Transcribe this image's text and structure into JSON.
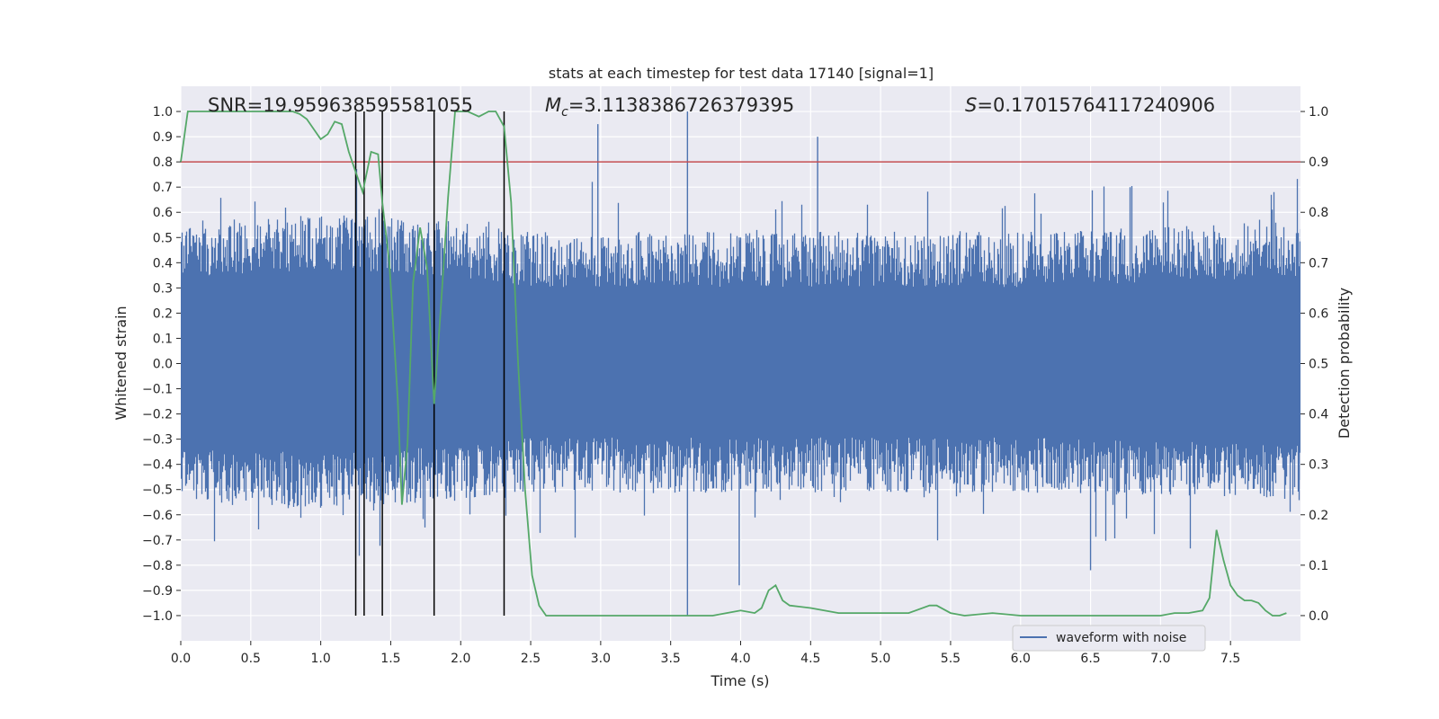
{
  "chart_data": {
    "type": "line",
    "title": "stats at each timestep for test data 17140 [signal=1]",
    "xlabel": "Time (s)",
    "ylabel": "Whitened strain",
    "y2label": "Detection probability",
    "xlim": [
      0,
      8.0
    ],
    "ylim": [
      -1.1,
      1.1
    ],
    "y2lim": [
      -0.05,
      1.05
    ],
    "x_ticks": [
      0.0,
      0.5,
      1.0,
      1.5,
      2.0,
      2.5,
      3.0,
      3.5,
      4.0,
      4.5,
      5.0,
      5.5,
      6.0,
      6.5,
      7.0,
      7.5
    ],
    "x_tick_labels": [
      "0.0",
      "0.5",
      "1.0",
      "1.5",
      "2.0",
      "2.5",
      "3.0",
      "3.5",
      "4.0",
      "4.5",
      "5.0",
      "5.5",
      "6.0",
      "6.5",
      "7.0",
      "7.5"
    ],
    "y_ticks": [
      1.0,
      0.9,
      0.8,
      0.7,
      0.6,
      0.5,
      0.4,
      0.3,
      0.2,
      0.1,
      0.0,
      -0.1,
      -0.2,
      -0.3,
      -0.4,
      -0.5,
      -0.6,
      -0.7,
      -0.8,
      -0.9,
      -1.0
    ],
    "y_tick_labels": [
      "1.0",
      "0.9",
      "0.8",
      "0.7",
      "0.6",
      "0.5",
      "0.4",
      "0.3",
      "0.2",
      "0.1",
      "0.0",
      "−0.1",
      "−0.2",
      "−0.3",
      "−0.4",
      "−0.5",
      "−0.6",
      "−0.7",
      "−0.8",
      "−0.9",
      "−1.0"
    ],
    "y2_ticks": [
      0.0,
      0.1,
      0.2,
      0.3,
      0.4,
      0.5,
      0.6,
      0.7,
      0.8,
      0.9,
      1.0
    ],
    "y2_tick_labels": [
      "0.0",
      "0.1",
      "0.2",
      "0.3",
      "0.4",
      "0.5",
      "0.6",
      "0.7",
      "0.8",
      "0.9",
      "1.0"
    ],
    "annotations": {
      "snr": "SNR=19.959638595581055",
      "mc_symbol": "M",
      "mc_sub": "c",
      "mc_value": "=3.1138386726379395",
      "s_symbol": "S",
      "s_value": "=0.17015764117240906"
    },
    "threshold": {
      "axis": "y2",
      "value": 0.9,
      "color": "#c44e52"
    },
    "vertical_markers": [
      1.25,
      1.31,
      1.44,
      1.81,
      2.31
    ],
    "legend": {
      "label": "waveform with noise",
      "placement": "lower-right"
    },
    "noise_envelope": {
      "x": [
        0.0,
        1.0,
        2.0,
        2.5,
        3.0,
        4.0,
        5.0,
        6.0,
        7.0,
        7.9
      ],
      "upper_typ": [
        0.42,
        0.45,
        0.42,
        0.38,
        0.38,
        0.38,
        0.38,
        0.38,
        0.4,
        0.42
      ],
      "lower_typ": [
        -0.42,
        -0.43,
        -0.4,
        -0.37,
        -0.37,
        -0.37,
        -0.37,
        -0.37,
        -0.38,
        -0.4
      ]
    },
    "series": [
      {
        "name": "detection probability",
        "axis": "y2",
        "color": "#55a868",
        "x": [
          0.0,
          0.05,
          0.1,
          0.2,
          0.3,
          0.4,
          0.5,
          0.6,
          0.7,
          0.8,
          0.85,
          0.9,
          1.0,
          1.05,
          1.1,
          1.15,
          1.2,
          1.25,
          1.3,
          1.36,
          1.41,
          1.44,
          1.49,
          1.55,
          1.58,
          1.62,
          1.66,
          1.71,
          1.76,
          1.81,
          1.86,
          1.91,
          1.96,
          2.0,
          2.05,
          2.13,
          2.2,
          2.25,
          2.31,
          2.36,
          2.41,
          2.46,
          2.51,
          2.56,
          2.61,
          2.66,
          2.8,
          3.0,
          3.2,
          3.4,
          3.6,
          3.8,
          3.9,
          4.0,
          4.1,
          4.15,
          4.2,
          4.25,
          4.3,
          4.35,
          4.5,
          4.7,
          4.9,
          5.0,
          5.2,
          5.35,
          5.4,
          5.5,
          5.6,
          5.8,
          6.0,
          6.2,
          6.4,
          6.6,
          6.8,
          7.0,
          7.1,
          7.2,
          7.3,
          7.35,
          7.4,
          7.45,
          7.5,
          7.55,
          7.6,
          7.65,
          7.7,
          7.75,
          7.8,
          7.85,
          7.9
        ],
        "y": [
          0.9,
          1.0,
          1.0,
          1.0,
          1.0,
          1.0,
          1.0,
          1.0,
          1.0,
          1.0,
          0.995,
          0.985,
          0.945,
          0.955,
          0.98,
          0.975,
          0.92,
          0.88,
          0.84,
          0.92,
          0.915,
          0.82,
          0.7,
          0.43,
          0.22,
          0.34,
          0.66,
          0.77,
          0.69,
          0.42,
          0.62,
          0.83,
          1.0,
          1.0,
          1.0,
          0.99,
          1.0,
          1.0,
          0.97,
          0.82,
          0.5,
          0.25,
          0.08,
          0.02,
          0.0,
          0.0,
          0.0,
          0.0,
          0.0,
          0.0,
          0.0,
          0.0,
          0.005,
          0.01,
          0.005,
          0.015,
          0.05,
          0.06,
          0.03,
          0.02,
          0.015,
          0.005,
          0.005,
          0.005,
          0.005,
          0.02,
          0.02,
          0.005,
          0.0,
          0.005,
          0.0,
          0.0,
          0.0,
          0.0,
          0.0,
          0.0,
          0.005,
          0.005,
          0.01,
          0.035,
          0.17,
          0.11,
          0.06,
          0.04,
          0.03,
          0.03,
          0.025,
          0.01,
          0.0,
          0.0,
          0.005
        ]
      }
    ]
  }
}
